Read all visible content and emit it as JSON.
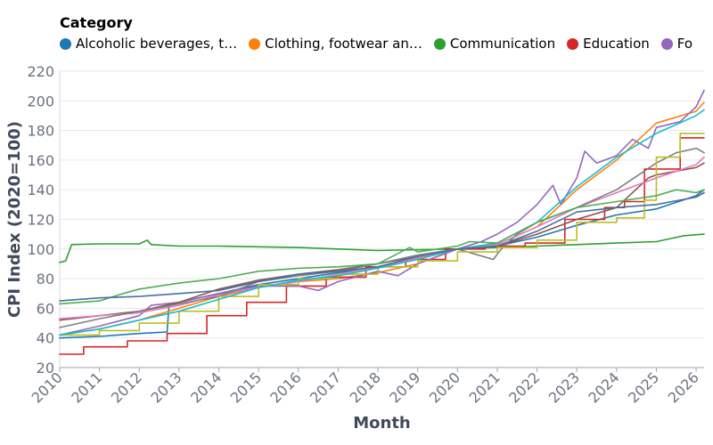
{
  "legend": {
    "title": "Category",
    "items": [
      {
        "label": "Alcoholic beverages, t…",
        "color": "#1f77b4"
      },
      {
        "label": "Clothing, footwear an…",
        "color": "#ff7f0e"
      },
      {
        "label": "Communication",
        "color": "#2ca02c"
      },
      {
        "label": "Education",
        "color": "#d62728"
      },
      {
        "label": "Fo",
        "color": "#9467bd"
      }
    ]
  },
  "chart_data": {
    "type": "line",
    "xlabel": "Month",
    "ylabel": "CPI Index (2020=100)",
    "xlim": [
      2010,
      2026.2
    ],
    "ylim": [
      20,
      220
    ],
    "xticks": [
      2010,
      2011,
      2012,
      2013,
      2014,
      2015,
      2016,
      2017,
      2018,
      2019,
      2020,
      2021,
      2022,
      2023,
      2024,
      2025,
      2026
    ],
    "yticks": [
      20,
      40,
      60,
      80,
      100,
      120,
      140,
      160,
      180,
      200,
      220
    ],
    "grid": "horizontal",
    "legend_position": "top",
    "series": [
      {
        "name": "Alcoholic beverages, t…",
        "color": "#1f77b4",
        "step": false,
        "points": [
          [
            2010,
            40
          ],
          [
            2011,
            41
          ],
          [
            2012,
            43
          ],
          [
            2012.7,
            44
          ],
          [
            2012.75,
            63
          ],
          [
            2013,
            64
          ],
          [
            2014,
            70
          ],
          [
            2015,
            76
          ],
          [
            2016,
            80
          ],
          [
            2017,
            84
          ],
          [
            2018,
            88
          ],
          [
            2019,
            94
          ],
          [
            2020,
            100
          ],
          [
            2021,
            102
          ],
          [
            2022,
            108
          ],
          [
            2023,
            116
          ],
          [
            2024,
            123
          ],
          [
            2025,
            127
          ],
          [
            2026,
            136
          ],
          [
            2026.2,
            140
          ]
        ]
      },
      {
        "name": "Clothing, footwear an…",
        "color": "#ff7f0e",
        "step": false,
        "points": [
          [
            2010,
            42
          ],
          [
            2011,
            46
          ],
          [
            2012,
            52
          ],
          [
            2013,
            60
          ],
          [
            2014,
            68
          ],
          [
            2015,
            74
          ],
          [
            2016,
            78
          ],
          [
            2017,
            80
          ],
          [
            2018,
            84
          ],
          [
            2019,
            90
          ],
          [
            2020,
            100
          ],
          [
            2021,
            103
          ],
          [
            2022,
            115
          ],
          [
            2023,
            140
          ],
          [
            2024,
            160
          ],
          [
            2025,
            185
          ],
          [
            2026,
            193
          ],
          [
            2026.2,
            199
          ]
        ]
      },
      {
        "name": "Communication",
        "color": "#2ca02c",
        "step": false,
        "points": [
          [
            2010,
            91
          ],
          [
            2010.15,
            92
          ],
          [
            2010.3,
            103
          ],
          [
            2011,
            103.5
          ],
          [
            2012,
            103.5
          ],
          [
            2012.2,
            106
          ],
          [
            2012.3,
            103
          ],
          [
            2013,
            102
          ],
          [
            2014,
            102
          ],
          [
            2015,
            101.5
          ],
          [
            2016,
            101
          ],
          [
            2017,
            100
          ],
          [
            2018,
            99
          ],
          [
            2019,
            99.5
          ],
          [
            2020,
            100
          ],
          [
            2021,
            101
          ],
          [
            2022,
            102
          ],
          [
            2023,
            103
          ],
          [
            2024,
            104
          ],
          [
            2025,
            105
          ],
          [
            2025.7,
            109
          ],
          [
            2026.2,
            110
          ]
        ]
      },
      {
        "name": "Education",
        "color": "#d62728",
        "step": true,
        "points": [
          [
            2010,
            29
          ],
          [
            2010.6,
            34
          ],
          [
            2011.7,
            38
          ],
          [
            2012.7,
            43
          ],
          [
            2013.7,
            55
          ],
          [
            2014.7,
            64
          ],
          [
            2015.7,
            75
          ],
          [
            2016.7,
            81
          ],
          [
            2017.7,
            88
          ],
          [
            2018.7,
            93
          ],
          [
            2019.7,
            100
          ],
          [
            2020.7,
            102
          ],
          [
            2021.7,
            104
          ],
          [
            2022.7,
            120
          ],
          [
            2023.7,
            128
          ],
          [
            2024.2,
            132
          ],
          [
            2024.7,
            154
          ],
          [
            2025.6,
            175
          ],
          [
            2026.2,
            175
          ]
        ]
      },
      {
        "name": "Fo",
        "color": "#9467bd",
        "step": false,
        "points": [
          [
            2010,
            42
          ],
          [
            2011,
            48
          ],
          [
            2012,
            55
          ],
          [
            2012.3,
            62
          ],
          [
            2013,
            64
          ],
          [
            2014,
            70
          ],
          [
            2015,
            75
          ],
          [
            2016,
            75
          ],
          [
            2016.5,
            72
          ],
          [
            2017,
            78
          ],
          [
            2018,
            85
          ],
          [
            2018.5,
            82
          ],
          [
            2019,
            90
          ],
          [
            2020,
            100
          ],
          [
            2020.6,
            105
          ],
          [
            2021,
            110
          ],
          [
            2021.5,
            118
          ],
          [
            2022,
            130
          ],
          [
            2022.4,
            143
          ],
          [
            2022.6,
            130
          ],
          [
            2023,
            148
          ],
          [
            2023.2,
            166
          ],
          [
            2023.5,
            158
          ],
          [
            2024,
            163
          ],
          [
            2024.4,
            174
          ],
          [
            2024.8,
            168
          ],
          [
            2025,
            182
          ],
          [
            2025.6,
            186
          ],
          [
            2026,
            196
          ],
          [
            2026.2,
            207
          ]
        ]
      },
      {
        "name": "",
        "color": "#8c564b",
        "step": false,
        "points": [
          [
            2010,
            52
          ],
          [
            2011,
            55
          ],
          [
            2012,
            58
          ],
          [
            2013,
            64
          ],
          [
            2014,
            73
          ],
          [
            2015,
            79
          ],
          [
            2016,
            83
          ],
          [
            2017,
            86
          ],
          [
            2018,
            90
          ],
          [
            2019,
            95
          ],
          [
            2020,
            100
          ],
          [
            2021,
            102
          ],
          [
            2022,
            110
          ],
          [
            2023,
            120
          ],
          [
            2024,
            128
          ],
          [
            2024.8,
            148
          ],
          [
            2025,
            150
          ],
          [
            2026,
            155
          ],
          [
            2026.2,
            158
          ]
        ]
      },
      {
        "name": "",
        "color": "#e377c2",
        "step": false,
        "points": [
          [
            2010,
            53
          ],
          [
            2011,
            55
          ],
          [
            2012,
            57
          ],
          [
            2013,
            62
          ],
          [
            2014,
            69
          ],
          [
            2015,
            74
          ],
          [
            2016,
            78
          ],
          [
            2017,
            83
          ],
          [
            2018,
            88
          ],
          [
            2019,
            94
          ],
          [
            2020,
            100
          ],
          [
            2021,
            103
          ],
          [
            2022,
            115
          ],
          [
            2023,
            128
          ],
          [
            2024,
            138
          ],
          [
            2025,
            148
          ],
          [
            2026,
            157
          ],
          [
            2026.2,
            162
          ]
        ]
      },
      {
        "name": "",
        "color": "#7f7f7f",
        "step": false,
        "points": [
          [
            2010,
            47
          ],
          [
            2011,
            53
          ],
          [
            2012,
            58
          ],
          [
            2013,
            63
          ],
          [
            2014,
            68
          ],
          [
            2015,
            78
          ],
          [
            2016,
            82
          ],
          [
            2017,
            85
          ],
          [
            2018,
            90
          ],
          [
            2019,
            96
          ],
          [
            2020,
            100
          ],
          [
            2020.9,
            93
          ],
          [
            2021.1,
            100
          ],
          [
            2021.5,
            110
          ],
          [
            2022,
            118
          ],
          [
            2023,
            128
          ],
          [
            2024,
            140
          ],
          [
            2025,
            158
          ],
          [
            2025.5,
            165
          ],
          [
            2026,
            168
          ],
          [
            2026.2,
            165
          ]
        ]
      },
      {
        "name": "",
        "color": "#bcbd22",
        "step": true,
        "points": [
          [
            2010,
            42
          ],
          [
            2011,
            45
          ],
          [
            2012,
            50
          ],
          [
            2013,
            58
          ],
          [
            2014,
            68
          ],
          [
            2015,
            76
          ],
          [
            2016,
            80
          ],
          [
            2017,
            83
          ],
          [
            2018,
            88
          ],
          [
            2019,
            92
          ],
          [
            2020,
            98
          ],
          [
            2021,
            101
          ],
          [
            2022,
            106
          ],
          [
            2023,
            118
          ],
          [
            2024,
            121
          ],
          [
            2024.7,
            133
          ],
          [
            2025,
            162
          ],
          [
            2025.6,
            178
          ],
          [
            2026.2,
            178
          ]
        ]
      },
      {
        "name": "",
        "color": "#17becf",
        "step": false,
        "points": [
          [
            2010,
            42
          ],
          [
            2011,
            46
          ],
          [
            2012,
            52
          ],
          [
            2013,
            58
          ],
          [
            2014,
            66
          ],
          [
            2015,
            74
          ],
          [
            2016,
            79
          ],
          [
            2017,
            82
          ],
          [
            2018,
            87
          ],
          [
            2019,
            93
          ],
          [
            2020,
            100
          ],
          [
            2021,
            104
          ],
          [
            2022,
            118
          ],
          [
            2023,
            142
          ],
          [
            2024,
            162
          ],
          [
            2025,
            178
          ],
          [
            2026,
            190
          ],
          [
            2026.2,
            194
          ]
        ]
      },
      {
        "name": "",
        "color": "#4caf50",
        "step": false,
        "points": [
          [
            2010,
            63
          ],
          [
            2011,
            65
          ],
          [
            2011.6,
            70
          ],
          [
            2012,
            73
          ],
          [
            2013,
            77
          ],
          [
            2014,
            80
          ],
          [
            2015,
            85
          ],
          [
            2016,
            87
          ],
          [
            2017,
            88
          ],
          [
            2018,
            90
          ],
          [
            2018.8,
            101
          ],
          [
            2019,
            98
          ],
          [
            2020,
            102
          ],
          [
            2020.3,
            105
          ],
          [
            2021,
            104
          ],
          [
            2022,
            118
          ],
          [
            2023,
            128
          ],
          [
            2024,
            132
          ],
          [
            2025,
            136
          ],
          [
            2025.5,
            140
          ],
          [
            2026,
            138
          ],
          [
            2026.2,
            140
          ]
        ]
      },
      {
        "name": "",
        "color": "#4a6fa5",
        "step": false,
        "points": [
          [
            2010,
            65
          ],
          [
            2011,
            67
          ],
          [
            2012,
            68
          ],
          [
            2013,
            70
          ],
          [
            2014,
            72
          ],
          [
            2015,
            78
          ],
          [
            2016,
            83
          ],
          [
            2017,
            85
          ],
          [
            2018,
            88
          ],
          [
            2019,
            95
          ],
          [
            2020,
            100
          ],
          [
            2021,
            102
          ],
          [
            2022,
            112
          ],
          [
            2023,
            125
          ],
          [
            2024,
            128
          ],
          [
            2025,
            130
          ],
          [
            2026,
            135
          ],
          [
            2026.2,
            138
          ]
        ]
      }
    ]
  }
}
